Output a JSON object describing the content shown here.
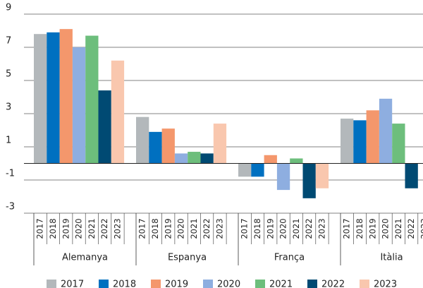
{
  "chart_data": {
    "type": "bar",
    "categories": [
      "Alemanya",
      "Espanya",
      "França",
      "Itàlia"
    ],
    "series": [
      {
        "name": "2017",
        "color": "#b3b8bb",
        "values": [
          7.8,
          2.8,
          -0.8,
          2.7
        ]
      },
      {
        "name": "2018",
        "color": "#0070c0",
        "values": [
          7.9,
          1.9,
          -0.8,
          2.6
        ]
      },
      {
        "name": "2019",
        "color": "#f4976c",
        "values": [
          8.1,
          2.1,
          0.5,
          3.2
        ]
      },
      {
        "name": "2020",
        "color": "#8eaee0",
        "values": [
          7.0,
          0.6,
          -1.6,
          3.9
        ]
      },
      {
        "name": "2021",
        "color": "#6dbe7c",
        "values": [
          7.7,
          0.7,
          0.3,
          2.4
        ]
      },
      {
        "name": "2022",
        "color": "#004a73",
        "values": [
          4.4,
          0.6,
          -2.1,
          -1.5
        ]
      },
      {
        "name": "2023",
        "color": "#f9c7ae",
        "values": [
          6.2,
          2.4,
          -1.5,
          null
        ]
      }
    ],
    "ylim": [
      -3,
      9
    ],
    "yticks": [
      -3,
      -1,
      1,
      3,
      5,
      7,
      9
    ],
    "grid": true
  }
}
